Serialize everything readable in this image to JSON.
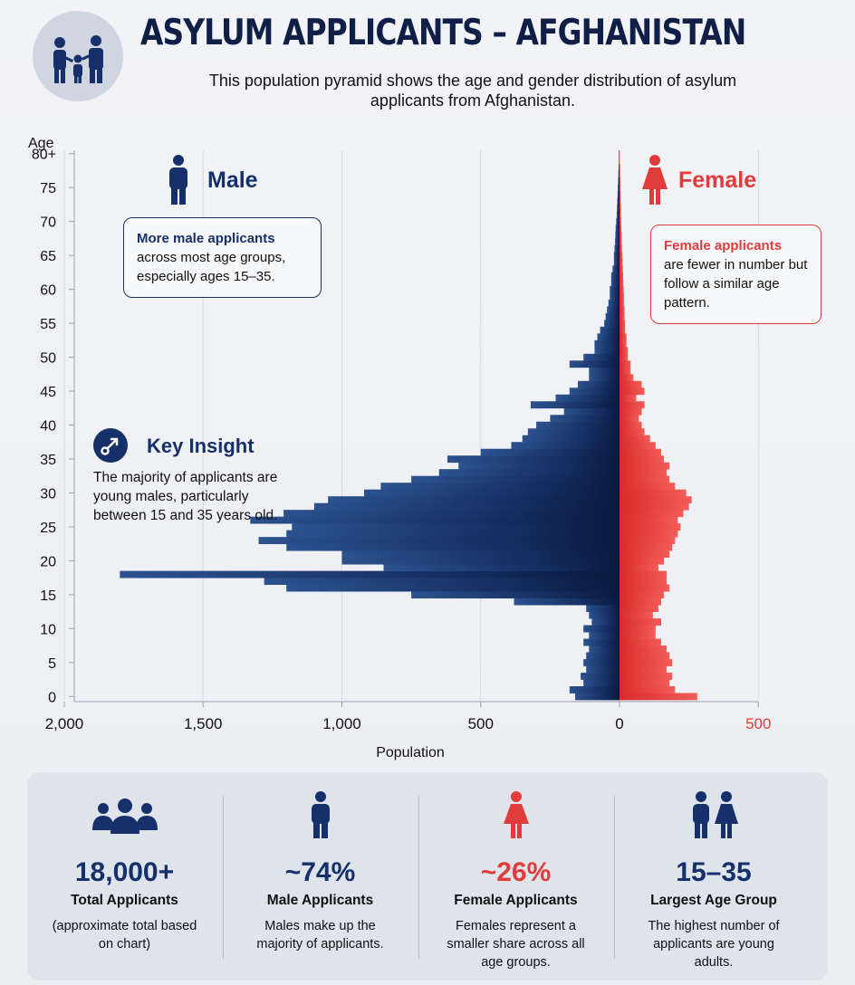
{
  "header": {
    "title": "ASYLUM APPLICANTS – AFGHANISTAN",
    "subtitle": "This population pyramid shows the age and gender distribution of asylum applicants from Afghanistan.",
    "icon": "family-icon"
  },
  "legend": {
    "male_label": "Male",
    "female_label": "Female",
    "male_color": "#15306a",
    "female_color": "#e23b3b"
  },
  "callouts": {
    "male": {
      "highlight": "More male applicants",
      "text": "across most age groups, especially ages 15–35."
    },
    "female": {
      "highlight": "Female applicants",
      "text": "are fewer in number but follow a similar age pattern."
    }
  },
  "insight": {
    "title": "Key Insight",
    "text": "The majority of applicants are young males, particularly between 15 and 35 years old.",
    "icon": "compass-icon"
  },
  "chart_data": {
    "type": "bar",
    "orientation": "horizontal-pyramid",
    "ylabel": "Age",
    "xlabel": "Population",
    "y_tick_labels": [
      "0",
      "5",
      "10",
      "15",
      "20",
      "25",
      "30",
      "35",
      "40",
      "45",
      "50",
      "55",
      "60",
      "65",
      "70",
      "75",
      "80+"
    ],
    "x_tick_labels_male": [
      "2,000",
      "1,500",
      "1,000",
      "500",
      "0"
    ],
    "x_tick_labels_female": [
      "500"
    ],
    "xlim_male": [
      0,
      2000
    ],
    "xlim_female": [
      0,
      500
    ],
    "ylim": [
      0,
      80
    ],
    "grid": true,
    "ages": [
      0,
      1,
      2,
      3,
      4,
      5,
      6,
      7,
      8,
      9,
      10,
      11,
      12,
      13,
      14,
      15,
      16,
      17,
      18,
      19,
      20,
      21,
      22,
      23,
      24,
      25,
      26,
      27,
      28,
      29,
      30,
      31,
      32,
      33,
      34,
      35,
      36,
      37,
      38,
      39,
      40,
      41,
      42,
      43,
      44,
      45,
      46,
      47,
      48,
      49,
      50,
      51,
      52,
      53,
      54,
      55,
      56,
      57,
      58,
      59,
      60,
      61,
      62,
      63,
      64,
      65,
      66,
      67,
      68,
      69,
      70,
      71,
      72,
      73,
      74,
      75,
      76,
      77,
      78,
      79,
      80
    ],
    "series": [
      {
        "name": "Male",
        "color": "#15306a",
        "values": [
          160,
          180,
          130,
          140,
          120,
          130,
          120,
          110,
          130,
          110,
          130,
          100,
          110,
          120,
          380,
          750,
          1200,
          1280,
          1800,
          850,
          1000,
          1000,
          1200,
          1300,
          1200,
          1180,
          1330,
          1210,
          1100,
          1050,
          920,
          860,
          750,
          650,
          580,
          620,
          500,
          390,
          350,
          330,
          300,
          250,
          200,
          320,
          230,
          180,
          150,
          110,
          110,
          180,
          130,
          90,
          90,
          80,
          70,
          55,
          50,
          45,
          40,
          35,
          35,
          30,
          30,
          25,
          20,
          20,
          18,
          16,
          15,
          14,
          12,
          10,
          9,
          8,
          7,
          6,
          5,
          4,
          3,
          2,
          2
        ]
      },
      {
        "name": "Female",
        "color": "#e23b3b",
        "values": [
          280,
          200,
          180,
          190,
          170,
          190,
          180,
          170,
          150,
          130,
          130,
          150,
          120,
          140,
          150,
          160,
          180,
          170,
          170,
          140,
          160,
          180,
          190,
          200,
          210,
          220,
          210,
          230,
          250,
          260,
          240,
          200,
          180,
          170,
          180,
          160,
          150,
          130,
          110,
          90,
          80,
          70,
          80,
          90,
          60,
          90,
          80,
          50,
          40,
          40,
          30,
          30,
          25,
          25,
          20,
          20,
          18,
          18,
          16,
          16,
          15,
          14,
          13,
          12,
          11,
          10,
          9,
          8,
          8,
          7,
          6,
          5,
          5,
          4,
          4,
          3,
          3,
          2,
          2,
          1,
          1
        ]
      }
    ]
  },
  "stats": [
    {
      "value": "18,000+",
      "label": "Total Applicants",
      "desc": "(approximate total based on chart)",
      "icon": "group-icon"
    },
    {
      "value": "~74%",
      "label": "Male Applicants",
      "desc": "Males make up the majority of applicants.",
      "icon": "male-person-icon"
    },
    {
      "value": "~26%",
      "label": "Female Applicants",
      "desc": "Females represent a smaller share across all age groups.",
      "icon": "female-person-icon"
    },
    {
      "value": "15–35",
      "label": "Largest Age Group",
      "desc": "The highest number of applicants are young adults.",
      "icon": "couple-icon"
    }
  ]
}
